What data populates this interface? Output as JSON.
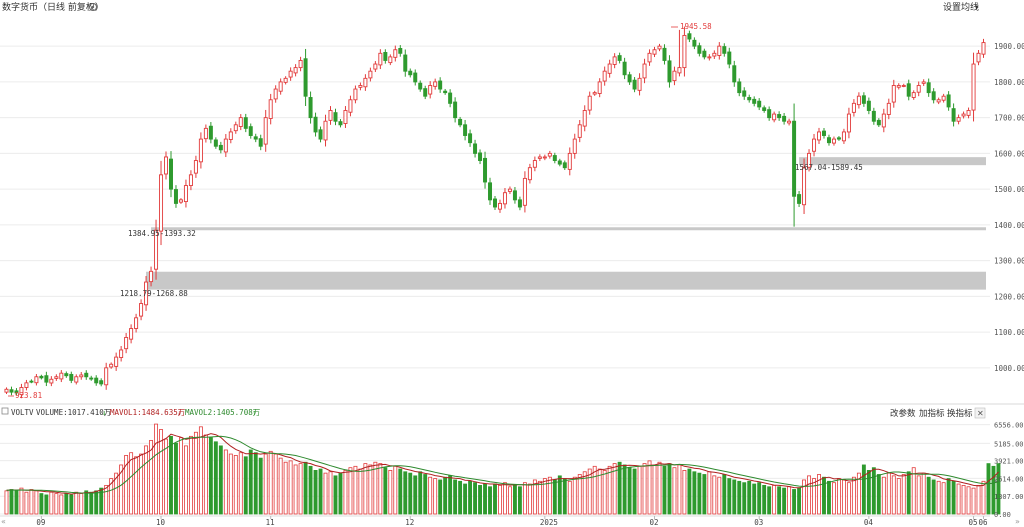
{
  "header": {
    "title": "数字货币（日线 前复权）",
    "settings_label": "设置均线"
  },
  "volume_header": {
    "indicator": "VOLTV",
    "volume": "VOLUME:1017.410万",
    "mavol1": "MAVOL1:1484.635万",
    "mavol2": "MAVOL2:1405.708万",
    "buttons": [
      "改参数",
      "加指标",
      "换指标"
    ],
    "close": "✕"
  },
  "annotations": {
    "high": "1945.58",
    "low": "923.81",
    "gap1": "1218.79-1268.88",
    "gap2": "1384.95-1393.32",
    "gap3": "1567.04-1589.45"
  },
  "colors": {
    "up": "#e23b3b",
    "down": "#2e9a2e",
    "gap_fill": "#c8c8c8",
    "mavol1": "#b02020",
    "mavol2": "#2e8a2e",
    "grid": "#ececec"
  },
  "chart_data": [
    {
      "type": "candlestick",
      "x_ticks": [
        "09",
        "10",
        "11",
        "12",
        "2025",
        "02",
        "03",
        "04",
        "05",
        "06"
      ],
      "y_ticks": [
        1000,
        1100,
        1200,
        1300,
        1400,
        1500,
        1600,
        1700,
        1800,
        1900
      ],
      "ylim": [
        910,
        1990
      ],
      "closes": [
        940,
        932,
        930,
        945,
        958,
        962,
        975,
        972,
        960,
        968,
        975,
        985,
        978,
        965,
        975,
        980,
        975,
        970,
        958,
        955,
        1000,
        1010,
        1030,
        1050,
        1085,
        1110,
        1140,
        1180,
        1240,
        1270,
        1385,
        1540,
        1590,
        1500,
        1460,
        1470,
        1510,
        1540,
        1580,
        1640,
        1670,
        1640,
        1620,
        1610,
        1640,
        1660,
        1680,
        1700,
        1670,
        1650,
        1640,
        1620,
        1700,
        1750,
        1780,
        1800,
        1810,
        1830,
        1840,
        1860,
        1760,
        1700,
        1660,
        1640,
        1690,
        1720,
        1690,
        1680,
        1720,
        1750,
        1780,
        1790,
        1810,
        1830,
        1850,
        1880,
        1860,
        1870,
        1890,
        1880,
        1830,
        1820,
        1800,
        1780,
        1760,
        1790,
        1800,
        1780,
        1770,
        1740,
        1700,
        1680,
        1650,
        1630,
        1600,
        1580,
        1520,
        1470,
        1450,
        1460,
        1490,
        1500,
        1470,
        1450,
        1530,
        1560,
        1580,
        1590,
        1590,
        1600,
        1580,
        1570,
        1560,
        1600,
        1640,
        1680,
        1720,
        1760,
        1770,
        1800,
        1830,
        1850,
        1870,
        1860,
        1820,
        1800,
        1780,
        1810,
        1850,
        1880,
        1890,
        1900,
        1860,
        1800,
        1830,
        1840,
        1930,
        1920,
        1900,
        1880,
        1870,
        1870,
        1880,
        1900,
        1880,
        1850,
        1800,
        1770,
        1760,
        1750,
        1740,
        1730,
        1720,
        1700,
        1710,
        1700,
        1690,
        1690,
        1480,
        1460,
        1560,
        1600,
        1640,
        1660,
        1650,
        1630,
        1640,
        1640,
        1660,
        1710,
        1740,
        1760,
        1740,
        1720,
        1690,
        1680,
        1710,
        1740,
        1790,
        1790,
        1790,
        1760,
        1770,
        1790,
        1800,
        1770,
        1750,
        1750,
        1760,
        1730,
        1690,
        1700,
        1710,
        1720,
        1850,
        1880,
        1910
      ]
    },
    {
      "type": "bar",
      "yticks": [
        "0.00",
        "1307.00",
        "2614.00",
        "3921.00",
        "5185.00",
        "6556.00"
      ],
      "ylim": [
        0,
        6900
      ],
      "unit": "万",
      "values": [
        1700,
        1800,
        1700,
        1900,
        1600,
        1800,
        1700,
        1500,
        1400,
        1600,
        1500,
        1400,
        1500,
        1400,
        1600,
        1500,
        1700,
        1600,
        1700,
        1900,
        2100,
        2600,
        3000,
        3600,
        4300,
        4500,
        4200,
        4400,
        5000,
        5400,
        6600,
        6200,
        5500,
        5700,
        5200,
        5600,
        5000,
        5700,
        6000,
        6400,
        5800,
        5600,
        5300,
        5000,
        4700,
        4400,
        4300,
        4500,
        4200,
        4700,
        4500,
        4100,
        4400,
        4600,
        4400,
        4100,
        3800,
        3900,
        3600,
        3700,
        3800,
        3500,
        3200,
        3300,
        3000,
        3100,
        2800,
        3000,
        3200,
        3400,
        3500,
        3300,
        3700,
        3600,
        3800,
        3700,
        3400,
        3200,
        3500,
        3300,
        3100,
        3000,
        2800,
        3100,
        2900,
        2700,
        2600,
        2500,
        2700,
        2800,
        2500,
        2400,
        2200,
        2400,
        2300,
        2100,
        2200,
        2000,
        2200,
        2100,
        2300,
        2000,
        2100,
        2000,
        2300,
        2200,
        2500,
        2400,
        2600,
        2700,
        2500,
        2800,
        2600,
        2400,
        2700,
        2900,
        3100,
        3300,
        3500,
        3300,
        3200,
        3500,
        3700,
        3800,
        3600,
        3400,
        3300,
        3500,
        3700,
        3900,
        3600,
        3800,
        3500,
        3700,
        3400,
        3600,
        3200,
        3300,
        3100,
        3000,
        2900,
        3100,
        2800,
        2700,
        2900,
        2600,
        2500,
        2400,
        2300,
        2400,
        2200,
        2300,
        2100,
        2000,
        2100,
        2000,
        1900,
        2000,
        1800,
        1900,
        2500,
        2800,
        2600,
        2900,
        2700,
        2400,
        2300,
        2600,
        2500,
        2300,
        2700,
        3000,
        3600,
        3200,
        3400,
        2900,
        2700,
        3000,
        2800,
        2600,
        2900,
        3100,
        3400,
        2800,
        3000,
        2700,
        2500,
        2400,
        2300,
        2600,
        2400,
        2200,
        2100,
        2000,
        1900,
        2100,
        2400,
        3700,
        3500,
        3700
      ],
      "ma1": [
        1750,
        1760,
        1760,
        1770,
        1740,
        1750,
        1720,
        1680,
        1640,
        1640,
        1600,
        1540,
        1520,
        1460,
        1520,
        1520,
        1580,
        1560,
        1660,
        1760,
        1900,
        2240,
        2640,
        3060,
        3600,
        4000,
        4120,
        4320,
        4480,
        4700,
        5200,
        5360,
        5540,
        5860,
        5740,
        5640,
        5480,
        5560,
        5560,
        5660,
        5780,
        5900,
        5820,
        5620,
        5280,
        4980,
        4740,
        4580,
        4420,
        4420,
        4440,
        4400,
        4460,
        4480,
        4440,
        4340,
        4220,
        4140,
        3960,
        3820,
        3760,
        3700,
        3560,
        3480,
        3340,
        3160,
        3080,
        3020,
        3060,
        3100,
        3180,
        3280,
        3420,
        3500,
        3580,
        3620,
        3640,
        3540,
        3520,
        3420,
        3300,
        3220,
        3120,
        3060,
        2980,
        2920,
        2820,
        2760,
        2680,
        2660,
        2620,
        2600,
        2480,
        2460,
        2360,
        2280,
        2240,
        2200,
        2200,
        2140,
        2160,
        2120,
        2140,
        2140,
        2140,
        2120,
        2220,
        2280,
        2400,
        2480,
        2540,
        2600,
        2600,
        2600,
        2600,
        2680,
        2760,
        2880,
        3100,
        3260,
        3280,
        3360,
        3440,
        3540,
        3560,
        3580,
        3560,
        3520,
        3500,
        3580,
        3600,
        3700,
        3660,
        3700,
        3600,
        3640,
        3500,
        3440,
        3360,
        3320,
        3220,
        3100,
        3060,
        3000,
        2920,
        2820,
        2700,
        2640,
        2580,
        2500,
        2420,
        2360,
        2280,
        2200,
        2120,
        2100,
        2060,
        2020,
        1940,
        1920,
        2020,
        2200,
        2300,
        2480,
        2660,
        2700,
        2580,
        2600,
        2500,
        2420,
        2440,
        2580,
        2820,
        3040,
        3280,
        3280,
        3180,
        3040,
        2960,
        2800,
        2800,
        2880,
        2960,
        3000,
        3000,
        2960,
        2840,
        2760,
        2580,
        2500,
        2440,
        2380,
        2280,
        2200,
        2100,
        2060,
        2100,
        2420,
        2700,
        3080
      ]
    }
  ]
}
